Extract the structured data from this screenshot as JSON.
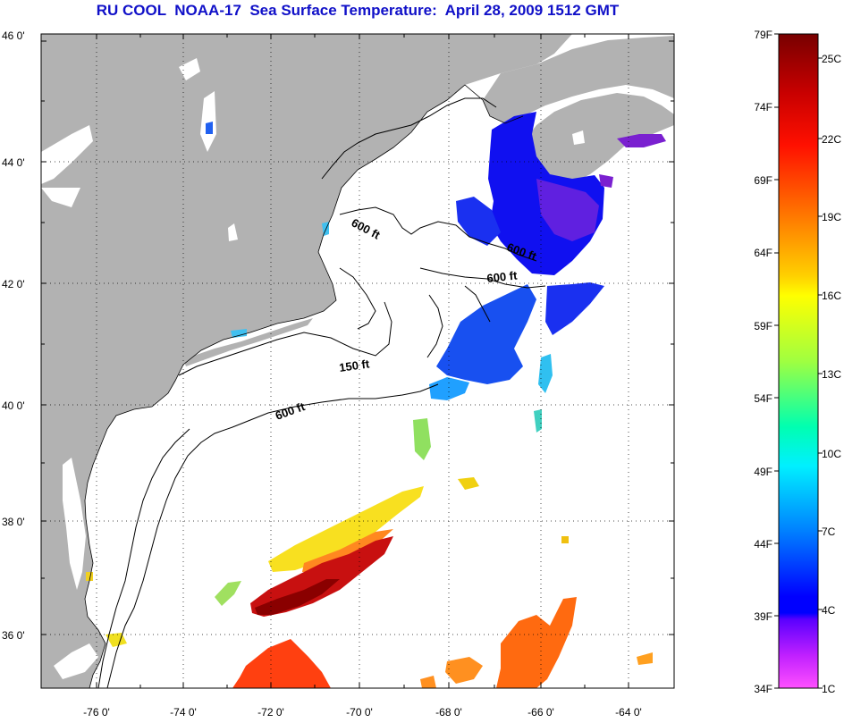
{
  "title": "RU COOL  NOAA-17  Sea Surface Temperature:  April 28, 2009 1512 GMT",
  "map": {
    "lat_ticks": [
      "46 0'",
      "44 0'",
      "42 0'",
      "40 0'",
      "38 0'",
      "36 0'"
    ],
    "lon_ticks": [
      "-76 0'",
      "-74 0'",
      "-72 0'",
      "-70 0'",
      "-68 0'",
      "-66 0'",
      "-64 0'"
    ],
    "lat_range": [
      35.1,
      46.0
    ],
    "lon_range": [
      -77.0,
      -63.0
    ],
    "grid": "dotted",
    "land_color": "#b2b2b2",
    "cloud_color": "#ffffff",
    "contours": [
      {
        "label": "600 ft"
      },
      {
        "label": "600 ft"
      },
      {
        "label": "600 ft"
      },
      {
        "label": "150 ft"
      },
      {
        "label": "600 ft"
      }
    ]
  },
  "colorbar": {
    "fahrenheit_labels": [
      "79F",
      "74F",
      "69F",
      "64F",
      "59F",
      "54F",
      "49F",
      "44F",
      "39F",
      "34F"
    ],
    "celsius_labels": [
      "25C",
      "22C",
      "19C",
      "16C",
      "13C",
      "10C",
      "7C",
      "4C",
      "1C"
    ],
    "colors": [
      "#780000",
      "#ff0000",
      "#ff8000",
      "#ffff00",
      "#80ff00",
      "#00ffff",
      "#0080ff",
      "#0000ff",
      "#8000ff",
      "#ff40ff"
    ]
  }
}
